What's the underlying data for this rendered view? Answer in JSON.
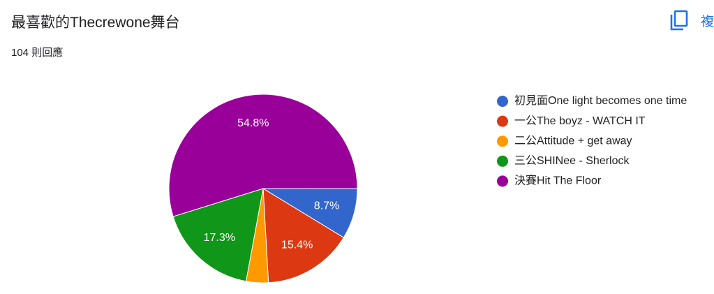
{
  "header": {
    "title": "最喜歡的Thecrewone舞台",
    "subtitle": "104 則回應",
    "copy_button": "複"
  },
  "chart_data": {
    "type": "pie",
    "categories": [
      "初見面One light becomes one time",
      "一公The boyz - WATCH IT",
      "二公Attitude + get away",
      "三公SHINee - Sherlock",
      "決賽Hit The Floor"
    ],
    "values": [
      8.7,
      15.4,
      3.8,
      17.3,
      54.8
    ],
    "value_labels": [
      "8.7%",
      "15.4%",
      null,
      "17.3%",
      "54.8%"
    ],
    "colors": [
      "#3366cc",
      "#dc3912",
      "#ff9900",
      "#109618",
      "#990099"
    ]
  }
}
